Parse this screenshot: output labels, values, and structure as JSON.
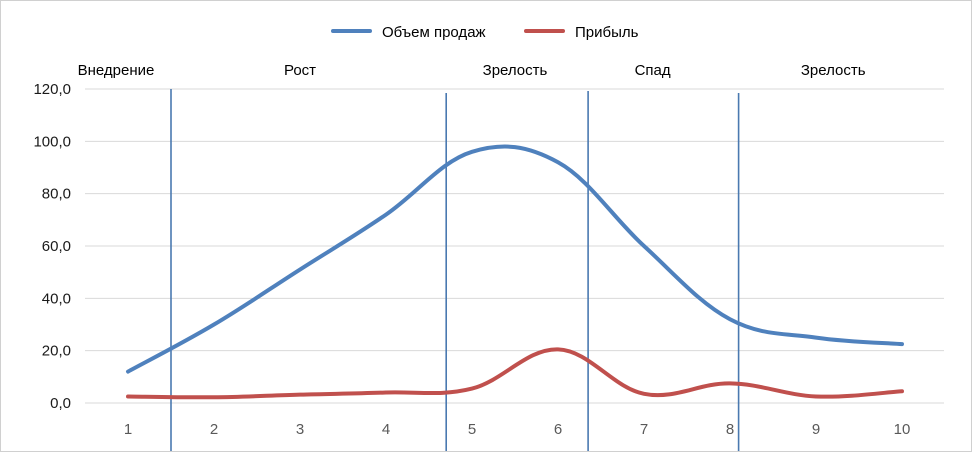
{
  "chart_data": {
    "type": "line",
    "title": "",
    "xlabel": "",
    "ylabel": "",
    "x": [
      1,
      2,
      3,
      4,
      5,
      6,
      7,
      8,
      9,
      10
    ],
    "categories": [
      "1",
      "2",
      "3",
      "4",
      "5",
      "6",
      "7",
      "8",
      "9",
      "10"
    ],
    "ylim": [
      0,
      120
    ],
    "yticks": [
      "0,0",
      "20,0",
      "40,0",
      "60,0",
      "80,0",
      "100,0",
      "120,0"
    ],
    "grid": true,
    "legend_position": "top-center",
    "series": [
      {
        "name": "Объем продаж",
        "color": "#4F81BD",
        "values": [
          12,
          30,
          51,
          72,
          96,
          92,
          60,
          32,
          25,
          22.5
        ]
      },
      {
        "name": "Прибыль",
        "color": "#C0504D",
        "values": [
          2.5,
          2.2,
          3.2,
          4.0,
          5.5,
          20.5,
          3.5,
          7.5,
          2.5,
          4.5
        ]
      }
    ],
    "phase_dividers_x": [
      1.5,
      4.7,
      6.35,
      8.1
    ],
    "phases": [
      {
        "label": "Внедрение",
        "x": 1
      },
      {
        "label": "Рост",
        "x": 3
      },
      {
        "label": "Зрелость",
        "x": 5.5
      },
      {
        "label": "Спад",
        "x": 7.1
      },
      {
        "label": "Зрелость",
        "x": 9.2
      }
    ]
  }
}
